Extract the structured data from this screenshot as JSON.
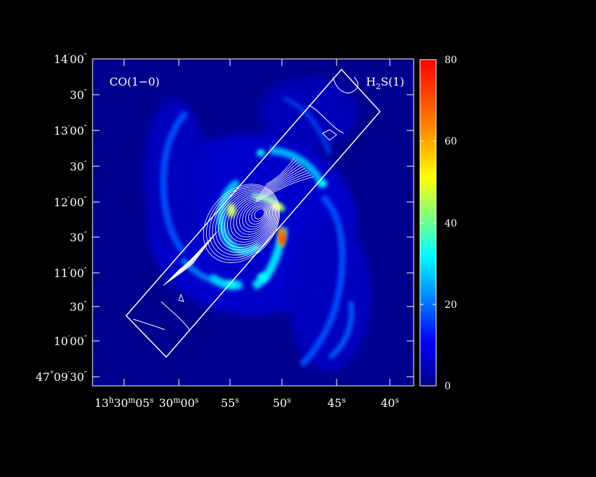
{
  "panel": {
    "left_label": "CO(1−0)",
    "right_label_main": "H",
    "right_label_sub": "2",
    "right_label_tail": "S(1)"
  },
  "colorbar": {
    "ticks": [
      "80",
      "60",
      "40",
      "20",
      "0"
    ],
    "min": 0,
    "max": 80,
    "colors": [
      "#00008b",
      "#0000ff",
      "#00a0ff",
      "#00ffff",
      "#80ff80",
      "#ffff00",
      "#ff8000",
      "#ff0000"
    ]
  },
  "y_axis": {
    "ticks": [
      {
        "prefix": "14",
        "sup1": "′",
        "num": "00",
        "sup2": "″"
      },
      {
        "prefix": "",
        "sup1": "",
        "num": "30",
        "sup2": "″"
      },
      {
        "prefix": "13",
        "sup1": "′",
        "num": "00",
        "sup2": "″"
      },
      {
        "prefix": "",
        "sup1": "",
        "num": "30",
        "sup2": "″"
      },
      {
        "prefix": "12",
        "sup1": "′",
        "num": "00",
        "sup2": "″"
      },
      {
        "prefix": "",
        "sup1": "",
        "num": "30",
        "sup2": "″"
      },
      {
        "prefix": "11",
        "sup1": "′",
        "num": "00",
        "sup2": "″"
      },
      {
        "prefix": "",
        "sup1": "",
        "num": "30",
        "sup2": "″"
      },
      {
        "prefix": "10",
        "sup1": "′",
        "num": "00",
        "sup2": "″"
      },
      {
        "prefix": "47",
        "sup1": "°",
        "num": "09",
        "sup2": "′",
        "extra": "30",
        "sup3": "″"
      }
    ]
  },
  "x_axis": {
    "ticks": [
      {
        "a": "13",
        "as": "h",
        "b": "30",
        "bs": "m",
        "c": "05",
        "cs": "s"
      },
      {
        "a": "30",
        "as": "m",
        "b": "00",
        "bs": "s"
      },
      {
        "a": "55",
        "as": "s"
      },
      {
        "a": "50",
        "as": "s"
      },
      {
        "a": "45",
        "as": "s"
      },
      {
        "a": "40",
        "as": "s"
      }
    ]
  }
}
